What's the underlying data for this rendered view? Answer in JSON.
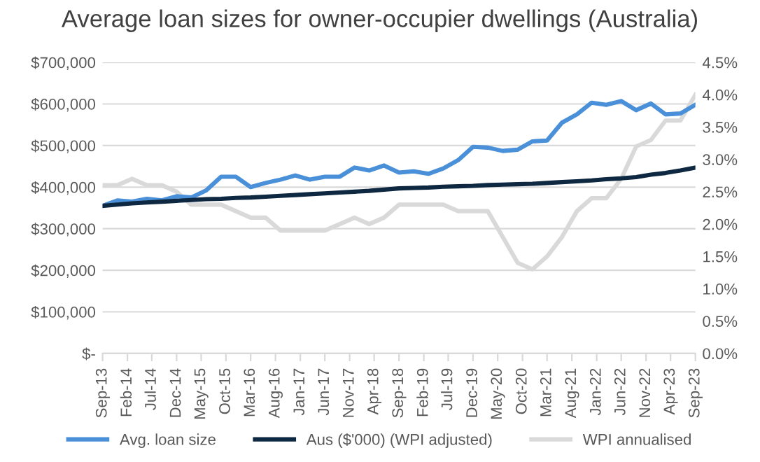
{
  "chart_data": {
    "type": "line",
    "title": "Average loan sizes for owner-occupier dwellings (Australia)",
    "x": [
      "2013-09",
      "2013-12",
      "2014-03",
      "2014-06",
      "2014-09",
      "2014-12",
      "2015-03",
      "2015-06",
      "2015-09",
      "2015-12",
      "2016-03",
      "2016-06",
      "2016-09",
      "2016-12",
      "2017-03",
      "2017-06",
      "2017-09",
      "2017-12",
      "2018-03",
      "2018-06",
      "2018-09",
      "2018-12",
      "2019-03",
      "2019-06",
      "2019-09",
      "2019-12",
      "2020-03",
      "2020-06",
      "2020-09",
      "2020-12",
      "2021-03",
      "2021-06",
      "2021-09",
      "2021-12",
      "2022-03",
      "2022-06",
      "2022-09",
      "2022-12",
      "2023-03",
      "2023-06",
      "2023-09"
    ],
    "series": [
      {
        "name": "Avg. loan size",
        "color": "#4a90d9",
        "values": [
          355000,
          368000,
          365000,
          372000,
          368000,
          378000,
          375000,
          392000,
          425000,
          425000,
          400000,
          410000,
          418000,
          428000,
          418000,
          425000,
          425000,
          447000,
          440000,
          452000,
          435000,
          438000,
          432000,
          445000,
          465000,
          497000,
          495000,
          487000,
          490000,
          510000,
          512000,
          555000,
          575000,
          603000,
          598000,
          607000,
          585000,
          601000,
          575000,
          577000,
          598000
        ]
      },
      {
        "name": "Aus ($'000) (WPI adjusted)",
        "color": "#0e2841",
        "values": [
          355000,
          358000,
          361000,
          363000,
          365000,
          367000,
          369000,
          371000,
          372000,
          374000,
          375000,
          377000,
          379000,
          381000,
          383000,
          385000,
          387000,
          389000,
          391000,
          394000,
          397000,
          398000,
          399000,
          401000,
          402000,
          403000,
          405000,
          406000,
          407000,
          408000,
          410000,
          412000,
          414000,
          416000,
          419000,
          421000,
          424000,
          430000,
          434000,
          440000,
          447000
        ]
      },
      {
        "name": "WPI annualised",
        "color": "#d9d9d9",
        "axis": "y2",
        "values": [
          2.6,
          2.6,
          2.7,
          2.6,
          2.6,
          2.5,
          2.3,
          2.3,
          2.3,
          2.2,
          2.1,
          2.1,
          1.9,
          1.9,
          1.9,
          1.9,
          2.0,
          2.1,
          2.0,
          2.1,
          2.3,
          2.3,
          2.3,
          2.3,
          2.2,
          2.2,
          2.2,
          1.8,
          1.4,
          1.3,
          1.5,
          1.8,
          2.2,
          2.4,
          2.4,
          2.7,
          3.2,
          3.3,
          3.6,
          3.6,
          4.0
        ]
      }
    ],
    "xlim": [
      "2013-09",
      "2023-09"
    ],
    "xticks": [
      {
        "value": "2013-09",
        "label": "Sep-13"
      },
      {
        "value": "2014-02",
        "label": "Feb-14"
      },
      {
        "value": "2014-07",
        "label": "Jul-14"
      },
      {
        "value": "2014-12",
        "label": "Dec-14"
      },
      {
        "value": "2015-05",
        "label": "May-15"
      },
      {
        "value": "2015-10",
        "label": "Oct-15"
      },
      {
        "value": "2016-03",
        "label": "Mar-16"
      },
      {
        "value": "2016-08",
        "label": "Aug-16"
      },
      {
        "value": "2017-01",
        "label": "Jan-17"
      },
      {
        "value": "2017-06",
        "label": "Jun-17"
      },
      {
        "value": "2017-11",
        "label": "Nov-17"
      },
      {
        "value": "2018-04",
        "label": "Apr-18"
      },
      {
        "value": "2018-09",
        "label": "Sep-18"
      },
      {
        "value": "2019-02",
        "label": "Feb-19"
      },
      {
        "value": "2019-07",
        "label": "Jul-19"
      },
      {
        "value": "2019-12",
        "label": "Dec-19"
      },
      {
        "value": "2020-05",
        "label": "May-20"
      },
      {
        "value": "2020-10",
        "label": "Oct-20"
      },
      {
        "value": "2021-03",
        "label": "Mar-21"
      },
      {
        "value": "2021-08",
        "label": "Aug-21"
      },
      {
        "value": "2022-01",
        "label": "Jan-22"
      },
      {
        "value": "2022-06",
        "label": "Jun-22"
      },
      {
        "value": "2022-11",
        "label": "Nov-22"
      },
      {
        "value": "2023-04",
        "label": "Apr-23"
      },
      {
        "value": "2023-09",
        "label": "Sep-23"
      }
    ],
    "ylim": [
      0,
      700000
    ],
    "yticks": [
      {
        "value": 0,
        "label": "$-"
      },
      {
        "value": 100000,
        "label": "$100,000"
      },
      {
        "value": 200000,
        "label": "$200,000"
      },
      {
        "value": 300000,
        "label": "$300,000"
      },
      {
        "value": 400000,
        "label": "$400,000"
      },
      {
        "value": 500000,
        "label": "$500,000"
      },
      {
        "value": 600000,
        "label": "$600,000"
      },
      {
        "value": 700000,
        "label": "$700,000"
      }
    ],
    "y2lim": [
      0,
      4.5
    ],
    "y2ticks": [
      {
        "value": 0,
        "label": "0.0%"
      },
      {
        "value": 0.5,
        "label": "0.5%"
      },
      {
        "value": 1,
        "label": "1.0%"
      },
      {
        "value": 1.5,
        "label": "1.5%"
      },
      {
        "value": 2,
        "label": "2.0%"
      },
      {
        "value": 2.5,
        "label": "2.5%"
      },
      {
        "value": 3,
        "label": "3.0%"
      },
      {
        "value": 3.5,
        "label": "3.5%"
      },
      {
        "value": 4,
        "label": "4.0%"
      },
      {
        "value": 4.5,
        "label": "4.5%"
      }
    ],
    "grid": "y",
    "legend": "bottom",
    "line_style": "solid",
    "marker": "none"
  }
}
